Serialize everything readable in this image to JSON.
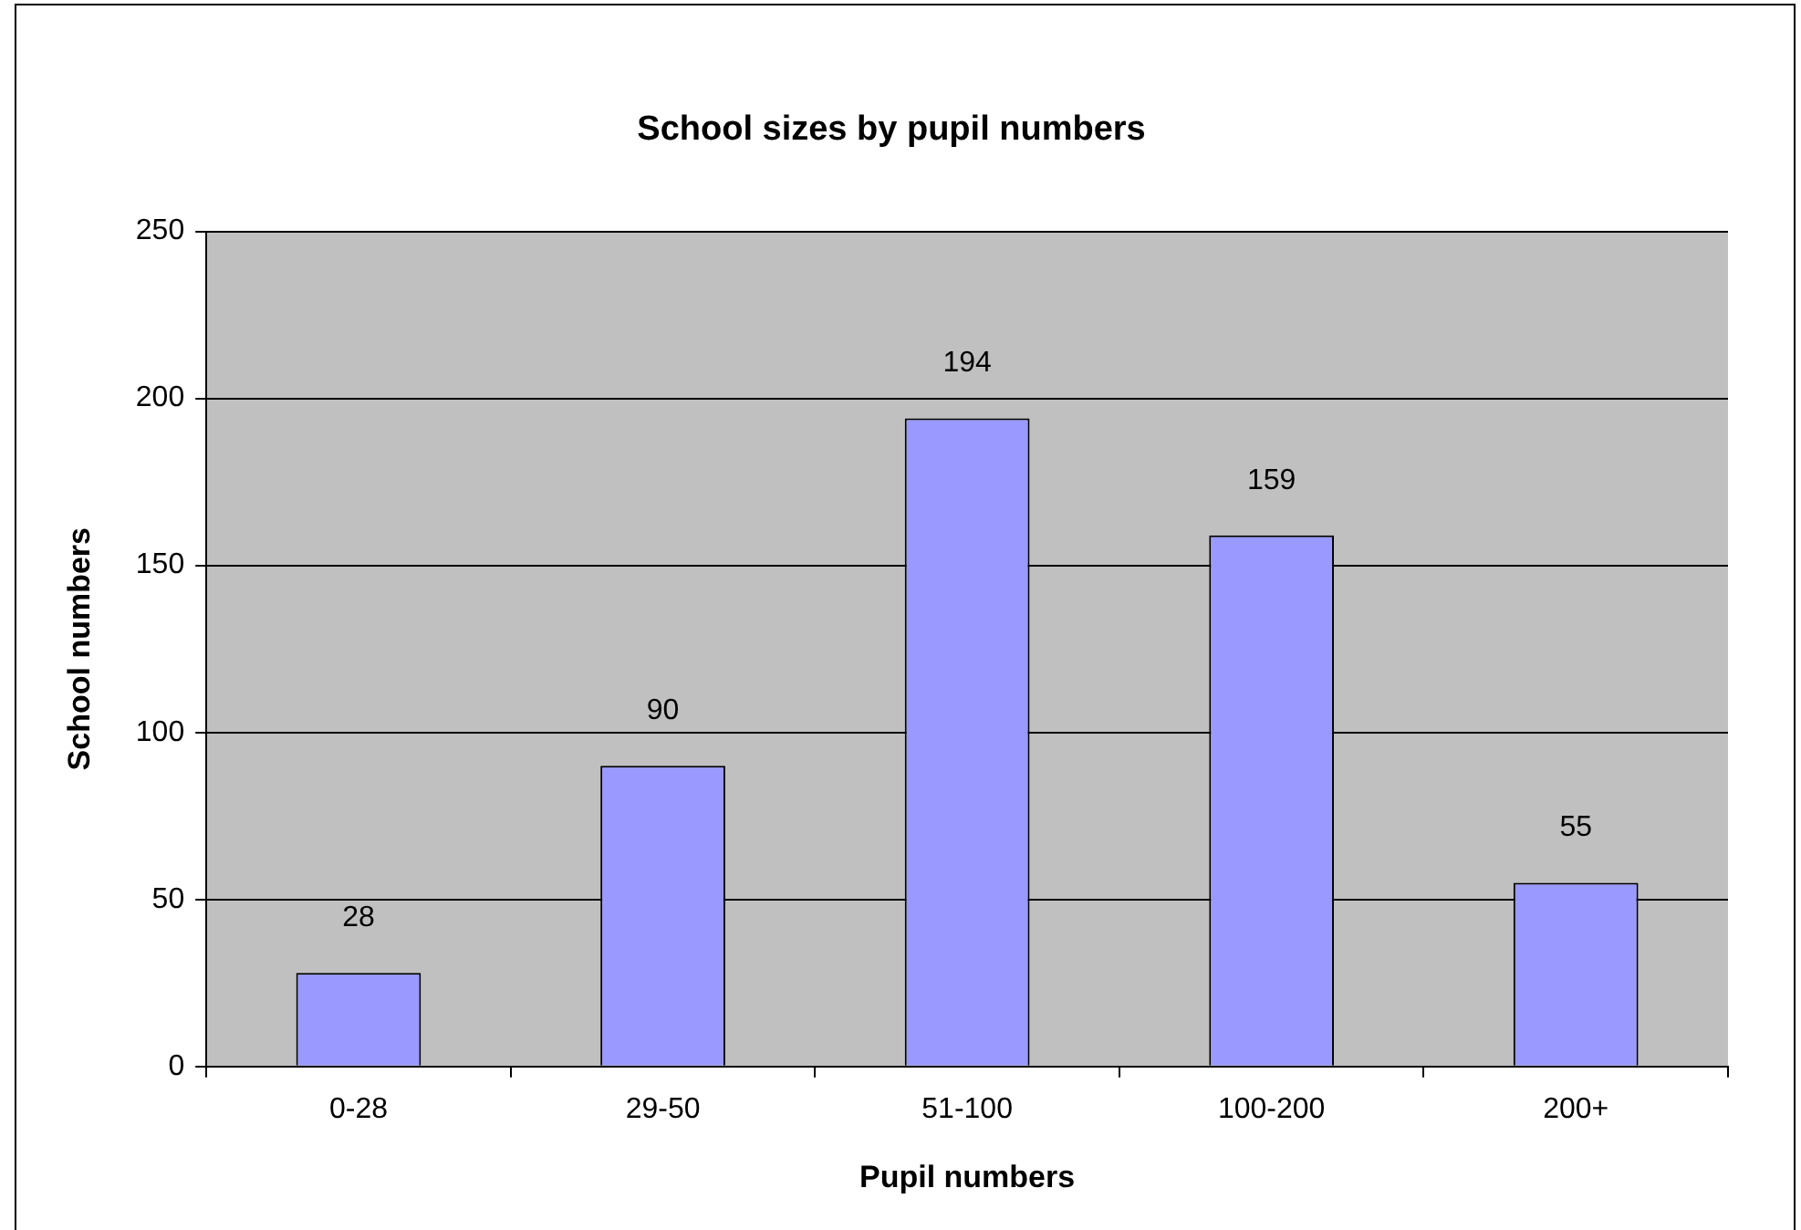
{
  "chart_data": {
    "type": "bar",
    "title": "School sizes by pupil numbers",
    "xlabel": "Pupil numbers",
    "ylabel": "School numbers",
    "categories": [
      "0-28",
      "29-50",
      "51-100",
      "100-200",
      "200+"
    ],
    "values": [
      28,
      90,
      194,
      159,
      55
    ],
    "color": "#9999ff",
    "ylim": [
      0,
      250
    ],
    "yticks": [
      0,
      50,
      100,
      150,
      200,
      250
    ],
    "grid": "y",
    "data_labels": true,
    "legend": false
  }
}
